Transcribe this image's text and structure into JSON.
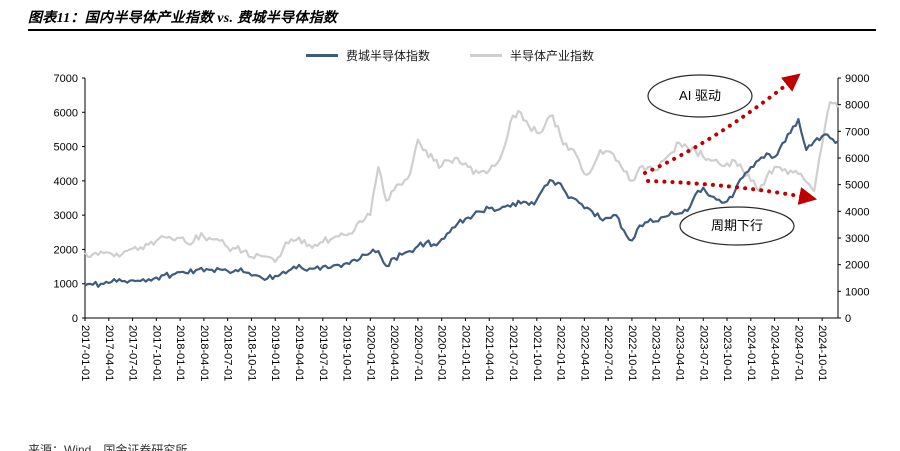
{
  "page": {
    "title": "图表11：国内半导体产业指数 vs. 费城半导体指数",
    "source": "来源：Wind，国金证券研究所"
  },
  "chart_data": {
    "type": "line",
    "title": "国内半导体产业指数 vs. 费城半导体指数",
    "figure_label": "图表11",
    "legend_position": "top-center",
    "grid": false,
    "x_start": "2017-01",
    "x_interval": "monthly",
    "x_tick_labels": [
      "2017-01-01",
      "2017-04-01",
      "2017-07-01",
      "2017-10-01",
      "2018-01-01",
      "2018-04-01",
      "2018-07-01",
      "2018-10-01",
      "2019-01-01",
      "2019-04-01",
      "2019-07-01",
      "2019-10-01",
      "2020-01-01",
      "2020-04-01",
      "2020-07-01",
      "2020-10-01",
      "2021-01-01",
      "2021-04-01",
      "2021-07-01",
      "2021-10-01",
      "2022-01-01",
      "2022-04-01",
      "2022-07-01",
      "2022-10-01",
      "2023-01-01",
      "2023-04-01",
      "2023-07-01",
      "2023-10-01",
      "2024-01-01",
      "2024-04-01",
      "2024-07-01",
      "2024-10-01"
    ],
    "left_axis": {
      "label": "费城半导体指数",
      "min": 0,
      "max": 7000,
      "ticks": [
        7000,
        6000,
        5000,
        4000,
        3000,
        2000,
        1000,
        0
      ]
    },
    "right_axis": {
      "label": "半导体产业指数",
      "min": 0,
      "max": 9000,
      "ticks": [
        9000,
        8000,
        7000,
        6000,
        5000,
        4000,
        3000,
        2000,
        1000,
        0
      ]
    },
    "series": [
      {
        "name": "费城半导体指数",
        "axis": "left",
        "color": "#3f5b7d",
        "values": [
          950,
          970,
          1000,
          1020,
          1060,
          1080,
          1100,
          1080,
          1130,
          1180,
          1250,
          1260,
          1340,
          1300,
          1400,
          1360,
          1410,
          1420,
          1370,
          1400,
          1340,
          1240,
          1220,
          1150,
          1230,
          1350,
          1420,
          1550,
          1380,
          1450,
          1500,
          1470,
          1550,
          1600,
          1700,
          1850,
          1900,
          1950,
          1520,
          1750,
          1850,
          1950,
          2100,
          2200,
          2150,
          2300,
          2500,
          2750,
          2900,
          3000,
          3100,
          3200,
          3150,
          3250,
          3350,
          3340,
          3300,
          3450,
          3850,
          4000,
          3920,
          3500,
          3450,
          3200,
          3100,
          2900,
          2920,
          3000,
          2550,
          2260,
          2700,
          2800,
          2820,
          2950,
          3100,
          3050,
          3120,
          3600,
          3800,
          3550,
          3450,
          3400,
          3700,
          4100,
          4400,
          4600,
          4800,
          4700,
          5100,
          5400,
          5800,
          4900,
          5150,
          5300,
          5250,
          5150
        ]
      },
      {
        "name": "半导体产业指数",
        "axis": "right",
        "color": "#cfcfcf",
        "values": [
          2450,
          2400,
          2500,
          2450,
          2420,
          2500,
          2600,
          2650,
          2750,
          2900,
          3030,
          2950,
          3000,
          2780,
          3100,
          3050,
          2950,
          2900,
          2650,
          2600,
          2500,
          2280,
          2350,
          2300,
          2100,
          2600,
          2950,
          3020,
          2700,
          2750,
          2850,
          2950,
          3050,
          3100,
          3300,
          3600,
          3860,
          5660,
          4400,
          4800,
          5000,
          5400,
          6690,
          6300,
          5900,
          5700,
          5900,
          6000,
          5800,
          5400,
          5500,
          5530,
          5800,
          6500,
          7590,
          7700,
          7200,
          6950,
          7200,
          7600,
          6800,
          6300,
          6100,
          5400,
          5600,
          6300,
          6250,
          5900,
          5500,
          5140,
          5660,
          5650,
          5530,
          5900,
          6200,
          6560,
          6400,
          6300,
          6040,
          5900,
          5790,
          5800,
          5900,
          5530,
          5140,
          4760,
          5300,
          5660,
          5530,
          5530,
          5400,
          5100,
          4760,
          6500,
          8100,
          7900
        ]
      }
    ],
    "annotations": [
      {
        "text": "AI 驱动",
        "shape": "ellipse"
      },
      {
        "text": "周期下行",
        "shape": "ellipse"
      }
    ],
    "arrows": [
      {
        "direction": "up-right",
        "style": "dotted",
        "color": "#c00000"
      },
      {
        "direction": "down-right",
        "style": "dotted",
        "color": "#c00000"
      }
    ],
    "arrow_color": "#c00000"
  }
}
